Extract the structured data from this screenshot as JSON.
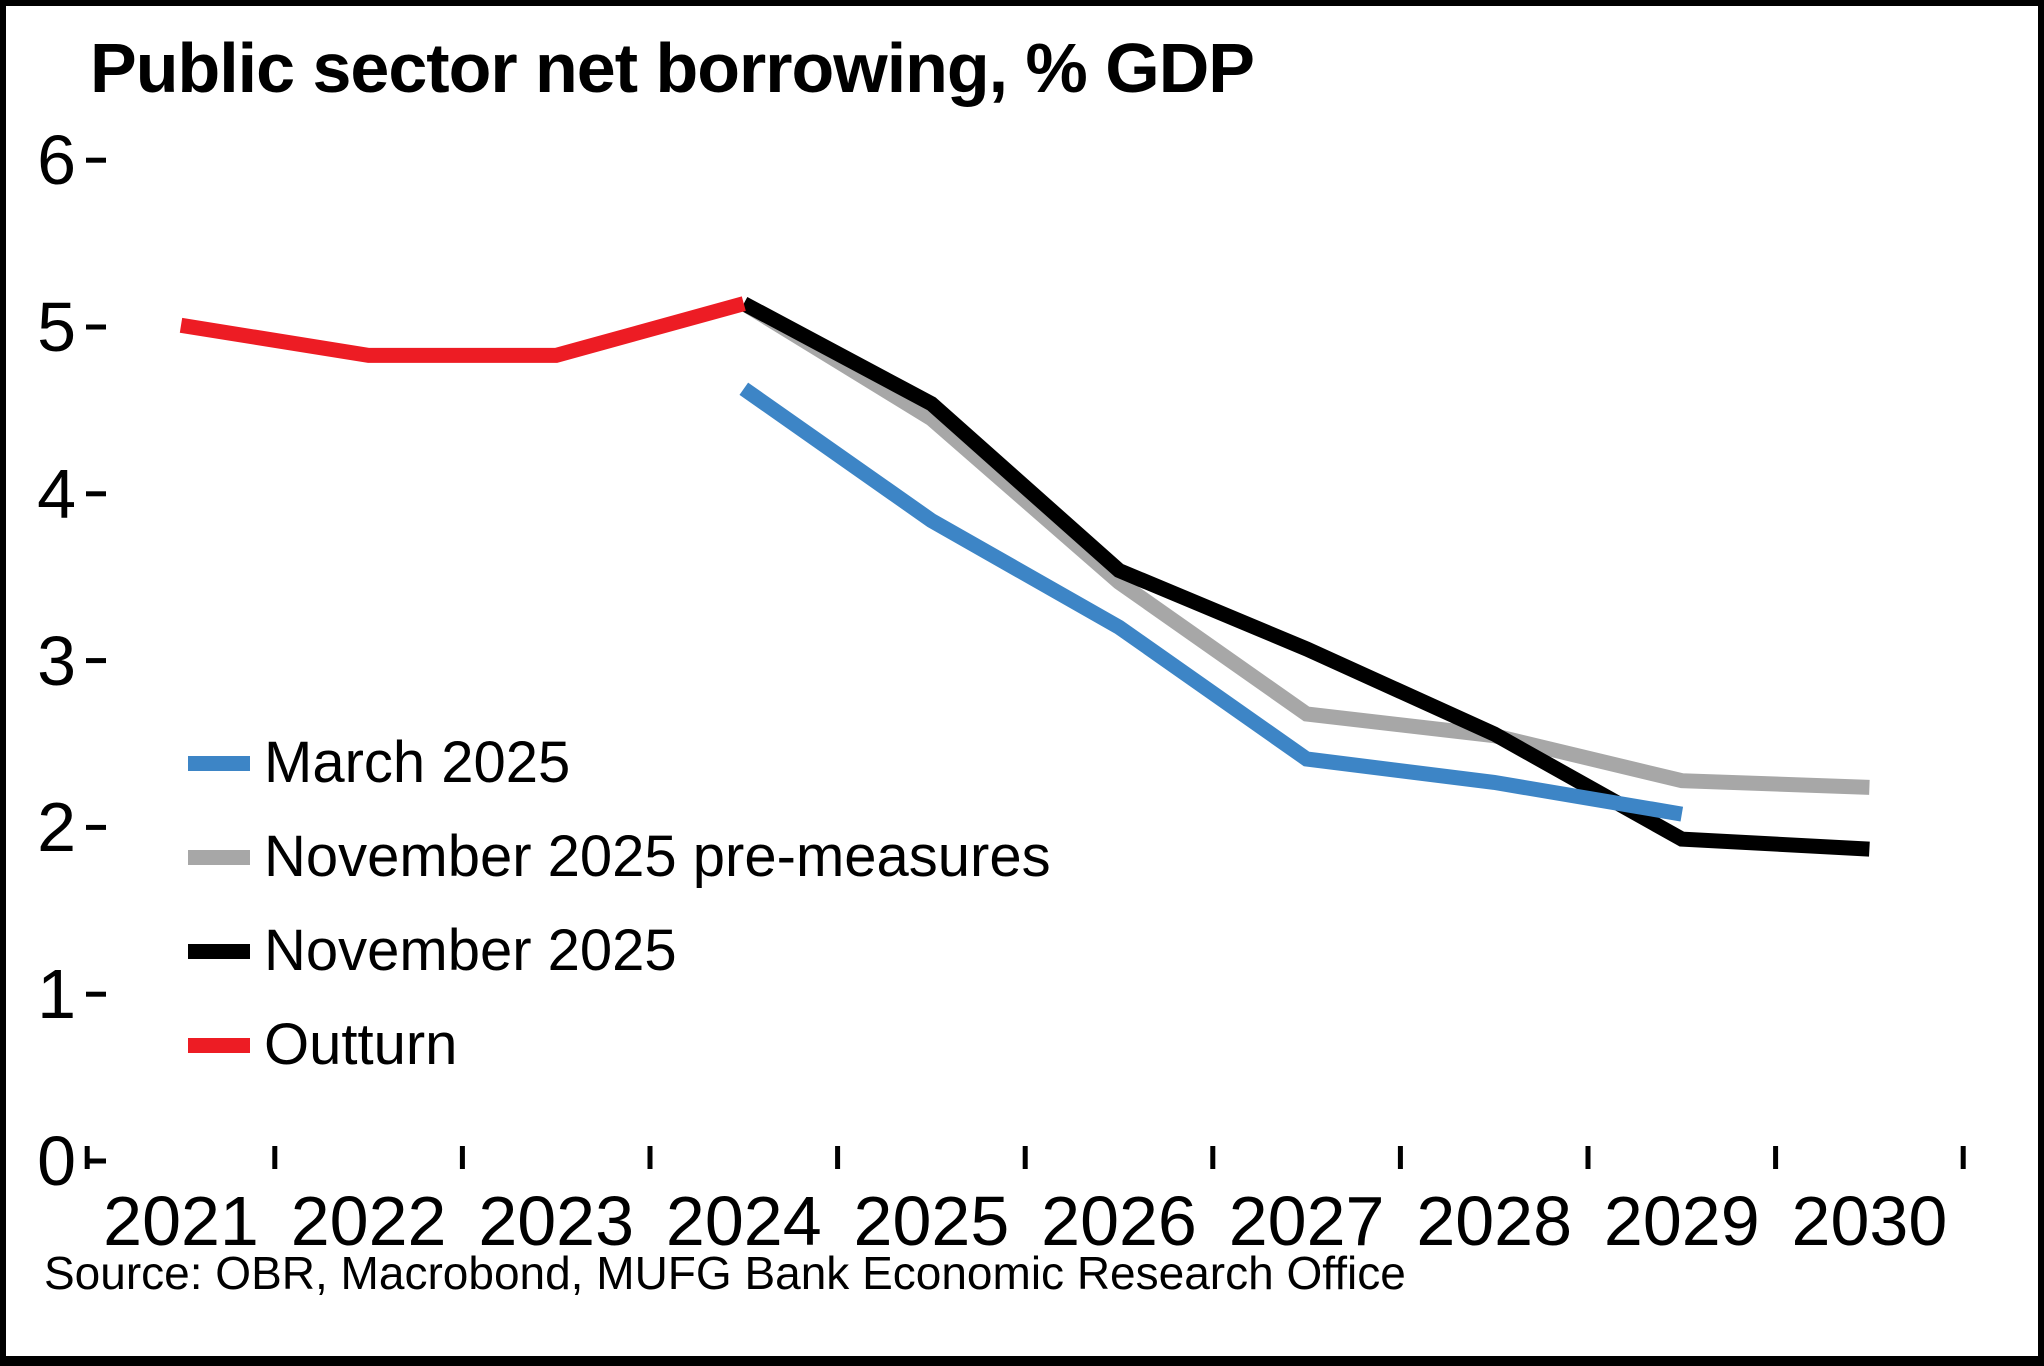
{
  "title": "Public sector net borrowing, % GDP",
  "source": "Source: OBR, Macrobond, MUFG Bank Economic Research Office",
  "chart_data": {
    "type": "line",
    "title": "Public sector net borrowing, % GDP",
    "xlabel": "",
    "ylabel": "% GDP",
    "x_years": [
      2021,
      2022,
      2023,
      2024,
      2025,
      2026,
      2027,
      2028,
      2029,
      2030
    ],
    "ylim": [
      0,
      6
    ],
    "yticks": [
      0,
      1,
      2,
      3,
      4,
      5,
      6
    ],
    "grid": false,
    "legend_position": "middle-left",
    "series": [
      {
        "name": "March 2025",
        "color": "#3D85C6",
        "start_year": 2024,
        "values": [
          4.63,
          3.84,
          3.2,
          2.41,
          2.27,
          2.08
        ]
      },
      {
        "name": "November 2025 pre-measures",
        "color": "#A7A7A7",
        "start_year": 2024,
        "values": [
          5.14,
          4.45,
          3.47,
          2.68,
          2.55,
          2.28,
          2.24
        ]
      },
      {
        "name": "November 2025",
        "color": "#000000",
        "start_year": 2024,
        "values": [
          5.14,
          4.54,
          3.54,
          3.07,
          2.56,
          1.93,
          1.87
        ]
      },
      {
        "name": "Outturn",
        "color": "#ED1C24",
        "start_year": 2021,
        "values": [
          5.01,
          4.83,
          4.83,
          5.14
        ]
      }
    ],
    "draw_order": [
      1,
      2,
      0,
      3
    ],
    "line_width": 15
  }
}
